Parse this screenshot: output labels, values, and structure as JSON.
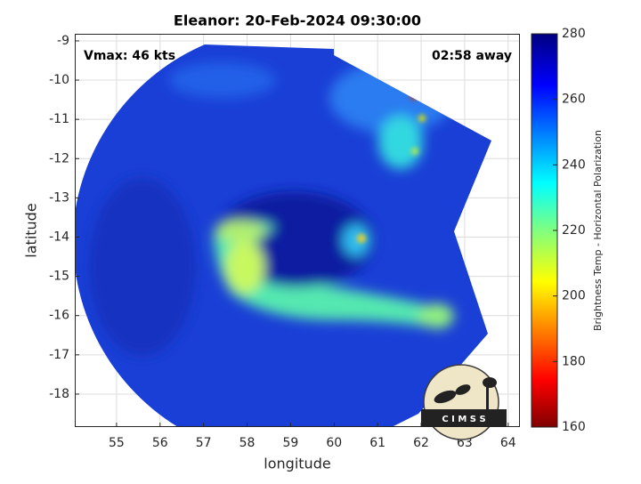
{
  "chart_data": {
    "type": "image",
    "title": "Eleanor: 20-Feb-2024 09:30:00",
    "x_label": "longitude",
    "y_label": "latitude",
    "xlim": [
      54.04,
      64.27
    ],
    "xticks": [
      55,
      56,
      57,
      58,
      59,
      60,
      61,
      62,
      63,
      64
    ],
    "ylim": [
      -18.84,
      -8.82
    ],
    "yticks": [
      -9,
      -10,
      -11,
      -12,
      -13,
      -14,
      -15,
      -16,
      -17,
      -18
    ],
    "grid": true,
    "annotations": [
      "Vmax: 46 kts",
      "02:58 away"
    ],
    "colorbar": {
      "label": "Brightness Temp - Horizontal Polarization",
      "lim": [
        160,
        280
      ],
      "ticks": [
        160,
        180,
        200,
        220,
        240,
        260,
        280
      ]
    },
    "logo": "C I M S S"
  }
}
